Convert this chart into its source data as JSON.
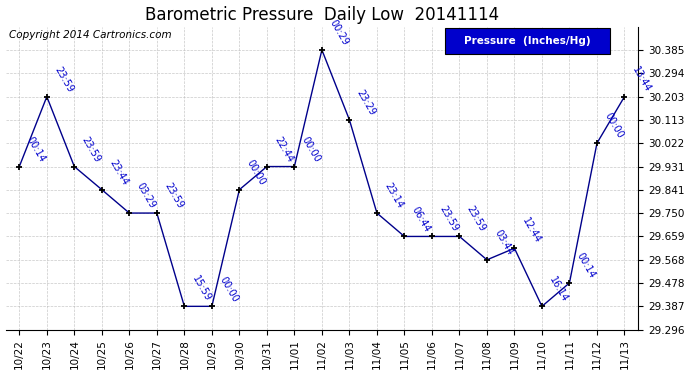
{
  "title": "Barometric Pressure  Daily Low  20141114",
  "copyright": "Copyright 2014 Cartronics.com",
  "legend_label": "Pressure  (Inches/Hg)",
  "x_labels": [
    "10/22",
    "10/23",
    "10/24",
    "10/25",
    "10/26",
    "10/27",
    "10/28",
    "10/29",
    "10/30",
    "10/31",
    "11/01",
    "11/02",
    "11/03",
    "11/04",
    "11/05",
    "11/06",
    "11/07",
    "11/08",
    "11/09",
    "11/10",
    "11/11",
    "11/12",
    "11/13"
  ],
  "y_values": [
    29.931,
    30.203,
    29.931,
    29.841,
    29.75,
    29.75,
    29.387,
    29.387,
    29.841,
    29.931,
    29.931,
    30.385,
    30.113,
    29.75,
    29.659,
    29.659,
    29.659,
    29.568,
    29.613,
    29.387,
    29.478,
    30.022,
    30.203
  ],
  "point_labels": [
    "00:14",
    "23:59",
    "23:59",
    "23:44",
    "03:29",
    "23:59",
    "15:59",
    "00:00",
    "00:00",
    "22:44",
    "00:00",
    "00:29",
    "23:29",
    "23:14",
    "06:44",
    "23:59",
    "23:59",
    "03:44",
    "12:44",
    "16:14",
    "00:14",
    "00:00",
    "13:44"
  ],
  "ylim_min": 29.296,
  "ylim_max": 30.476,
  "y_ticks": [
    29.296,
    29.387,
    29.478,
    29.568,
    29.659,
    29.75,
    29.841,
    29.931,
    30.022,
    30.113,
    30.203,
    30.294,
    30.385
  ],
  "line_color": "#00008B",
  "marker_color": "#000000",
  "label_color": "#0000CD",
  "background_color": "#ffffff",
  "grid_color": "#bbbbbb",
  "legend_bg": "#0000CC",
  "legend_text_color": "#ffffff",
  "title_fontsize": 12,
  "label_fontsize": 7,
  "tick_fontsize": 7.5,
  "copyright_fontsize": 7.5
}
